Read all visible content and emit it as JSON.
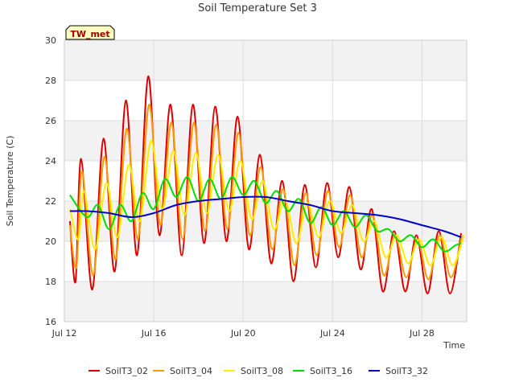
{
  "chart_data": {
    "type": "line",
    "title": "Soil Temperature Set 3",
    "xlabel": "Time",
    "ylabel": "Soil Temperature (C)",
    "xlim": [
      "2024-07-12",
      "2024-07-30"
    ],
    "ylim": [
      16,
      30
    ],
    "yticks": [
      16,
      18,
      20,
      22,
      24,
      26,
      28,
      30
    ],
    "xticks": [
      {
        "date": "2024-07-12",
        "label": "Jul 12"
      },
      {
        "date": "2024-07-16",
        "label": "Jul 16"
      },
      {
        "date": "2024-07-20",
        "label": "Jul 20"
      },
      {
        "date": "2024-07-24",
        "label": "Jul 24"
      },
      {
        "date": "2024-07-28",
        "label": "Jul 28"
      }
    ],
    "grid": true,
    "legend_position": "bottom",
    "site_badge": "TW_met",
    "series": [
      {
        "name": "SoilT3_02",
        "color": "#dd0000",
        "x": [
          "2024-07-12 06:00",
          "2024-07-12 12:00",
          "2024-07-12 18:00",
          "2024-07-13 06:00",
          "2024-07-13 18:00",
          "2024-07-14 06:00",
          "2024-07-14 18:00",
          "2024-07-15 06:00",
          "2024-07-15 18:00",
          "2024-07-16 06:00",
          "2024-07-16 18:00",
          "2024-07-17 06:00",
          "2024-07-17 18:00",
          "2024-07-18 06:00",
          "2024-07-18 18:00",
          "2024-07-19 06:00",
          "2024-07-19 18:00",
          "2024-07-20 06:00",
          "2024-07-20 18:00",
          "2024-07-21 06:00",
          "2024-07-21 18:00",
          "2024-07-22 06:00",
          "2024-07-22 18:00",
          "2024-07-23 06:00",
          "2024-07-23 18:00",
          "2024-07-24 06:00",
          "2024-07-24 18:00",
          "2024-07-25 06:00",
          "2024-07-25 18:00",
          "2024-07-26 06:00",
          "2024-07-26 18:00",
          "2024-07-27 06:00",
          "2024-07-27 18:00",
          "2024-07-28 06:00",
          "2024-07-28 18:00",
          "2024-07-29 06:00",
          "2024-07-29 18:00"
        ],
        "y": [
          21.0,
          18.0,
          24.1,
          17.6,
          25.1,
          18.5,
          27.0,
          19.3,
          28.2,
          20.3,
          26.8,
          19.3,
          26.8,
          19.9,
          26.7,
          20.0,
          26.2,
          19.6,
          24.3,
          18.9,
          23.0,
          18.0,
          22.8,
          18.7,
          22.9,
          19.2,
          22.7,
          18.6,
          21.6,
          17.5,
          20.5,
          17.5,
          20.3,
          17.4,
          20.5,
          17.4,
          20.4
        ]
      },
      {
        "name": "SoilT3_04",
        "color": "#ff9900",
        "x": [
          "2024-07-12 06:00",
          "2024-07-12 13:00",
          "2024-07-12 19:00",
          "2024-07-13 07:00",
          "2024-07-13 19:00",
          "2024-07-14 07:00",
          "2024-07-14 19:00",
          "2024-07-15 07:00",
          "2024-07-15 19:00",
          "2024-07-16 07:00",
          "2024-07-16 19:00",
          "2024-07-17 07:00",
          "2024-07-17 19:00",
          "2024-07-18 07:00",
          "2024-07-18 19:00",
          "2024-07-19 07:00",
          "2024-07-19 19:00",
          "2024-07-20 07:00",
          "2024-07-20 19:00",
          "2024-07-21 07:00",
          "2024-07-21 19:00",
          "2024-07-22 07:00",
          "2024-07-22 19:00",
          "2024-07-23 07:00",
          "2024-07-23 19:00",
          "2024-07-24 07:00",
          "2024-07-24 19:00",
          "2024-07-25 07:00",
          "2024-07-25 19:00",
          "2024-07-26 07:00",
          "2024-07-26 19:00",
          "2024-07-27 07:00",
          "2024-07-27 19:00",
          "2024-07-28 07:00",
          "2024-07-28 19:00",
          "2024-07-29 07:00",
          "2024-07-29 19:00"
        ],
        "y": [
          20.8,
          18.7,
          23.5,
          18.3,
          24.2,
          19.1,
          25.6,
          20.1,
          26.8,
          20.8,
          25.9,
          20.1,
          25.9,
          20.5,
          25.8,
          20.6,
          25.4,
          20.3,
          23.7,
          19.6,
          22.6,
          18.8,
          22.4,
          19.3,
          22.5,
          19.7,
          22.3,
          19.2,
          21.3,
          18.3,
          20.3,
          18.2,
          20.1,
          18.1,
          20.3,
          18.2,
          20.3
        ]
      },
      {
        "name": "SoilT3_08",
        "color": "#ffee00",
        "x": [
          "2024-07-12 06:00",
          "2024-07-12 15:00",
          "2024-07-12 21:00",
          "2024-07-13 09:00",
          "2024-07-13 21:00",
          "2024-07-14 09:00",
          "2024-07-14 21:00",
          "2024-07-15 09:00",
          "2024-07-15 21:00",
          "2024-07-16 09:00",
          "2024-07-16 21:00",
          "2024-07-17 09:00",
          "2024-07-17 21:00",
          "2024-07-18 09:00",
          "2024-07-18 21:00",
          "2024-07-19 09:00",
          "2024-07-19 21:00",
          "2024-07-20 09:00",
          "2024-07-20 21:00",
          "2024-07-21 09:00",
          "2024-07-21 21:00",
          "2024-07-22 09:00",
          "2024-07-22 21:00",
          "2024-07-23 09:00",
          "2024-07-23 21:00",
          "2024-07-24 09:00",
          "2024-07-24 21:00",
          "2024-07-25 09:00",
          "2024-07-25 21:00",
          "2024-07-26 09:00",
          "2024-07-26 21:00",
          "2024-07-27 09:00",
          "2024-07-27 21:00",
          "2024-07-28 09:00",
          "2024-07-28 21:00",
          "2024-07-29 09:00",
          "2024-07-29 21:00"
        ],
        "y": [
          21.6,
          20.1,
          22.5,
          19.6,
          22.9,
          20.2,
          23.8,
          21.0,
          25.0,
          21.6,
          24.5,
          21.3,
          24.4,
          21.4,
          24.3,
          21.5,
          24.0,
          21.1,
          23.0,
          20.6,
          22.1,
          19.9,
          21.9,
          20.2,
          22.0,
          20.4,
          21.8,
          20.0,
          21.0,
          19.2,
          20.3,
          18.9,
          20.1,
          18.8,
          20.2,
          18.8,
          20.3
        ]
      },
      {
        "name": "SoilT3_16",
        "color": "#00dd00",
        "x": [
          "2024-07-12 06:00",
          "2024-07-13 00:00",
          "2024-07-13 12:00",
          "2024-07-14 00:00",
          "2024-07-14 12:00",
          "2024-07-15 00:00",
          "2024-07-15 12:00",
          "2024-07-16 00:00",
          "2024-07-16 12:00",
          "2024-07-17 00:00",
          "2024-07-17 12:00",
          "2024-07-18 00:00",
          "2024-07-18 12:00",
          "2024-07-19 00:00",
          "2024-07-19 12:00",
          "2024-07-20 00:00",
          "2024-07-20 12:00",
          "2024-07-21 00:00",
          "2024-07-21 12:00",
          "2024-07-22 00:00",
          "2024-07-22 12:00",
          "2024-07-23 00:00",
          "2024-07-23 12:00",
          "2024-07-24 00:00",
          "2024-07-24 12:00",
          "2024-07-25 00:00",
          "2024-07-25 12:00",
          "2024-07-26 00:00",
          "2024-07-26 12:00",
          "2024-07-27 00:00",
          "2024-07-27 12:00",
          "2024-07-28 00:00",
          "2024-07-28 12:00",
          "2024-07-29 00:00",
          "2024-07-29 12:00",
          "2024-07-29 18:00"
        ],
        "y": [
          22.3,
          21.2,
          21.8,
          20.6,
          21.8,
          21.0,
          22.4,
          21.6,
          23.1,
          22.2,
          23.2,
          22.0,
          23.1,
          22.1,
          23.2,
          22.3,
          23.0,
          21.9,
          22.5,
          21.5,
          22.1,
          20.9,
          21.7,
          20.8,
          21.5,
          20.7,
          21.3,
          20.5,
          20.6,
          20.0,
          20.3,
          19.7,
          20.1,
          19.5,
          19.8,
          19.9
        ]
      },
      {
        "name": "SoilT3_32",
        "color": "#0000cc",
        "x": [
          "2024-07-12 06:00",
          "2024-07-13 00:00",
          "2024-07-14 00:00",
          "2024-07-15 00:00",
          "2024-07-16 00:00",
          "2024-07-17 00:00",
          "2024-07-18 00:00",
          "2024-07-19 00:00",
          "2024-07-20 00:00",
          "2024-07-21 00:00",
          "2024-07-22 00:00",
          "2024-07-23 00:00",
          "2024-07-24 00:00",
          "2024-07-25 00:00",
          "2024-07-26 00:00",
          "2024-07-27 00:00",
          "2024-07-28 00:00",
          "2024-07-29 00:00",
          "2024-07-29 18:00"
        ],
        "y": [
          21.5,
          21.5,
          21.4,
          21.2,
          21.4,
          21.8,
          22.0,
          22.1,
          22.2,
          22.2,
          22.0,
          21.8,
          21.5,
          21.4,
          21.3,
          21.1,
          20.8,
          20.5,
          20.2
        ]
      }
    ]
  }
}
